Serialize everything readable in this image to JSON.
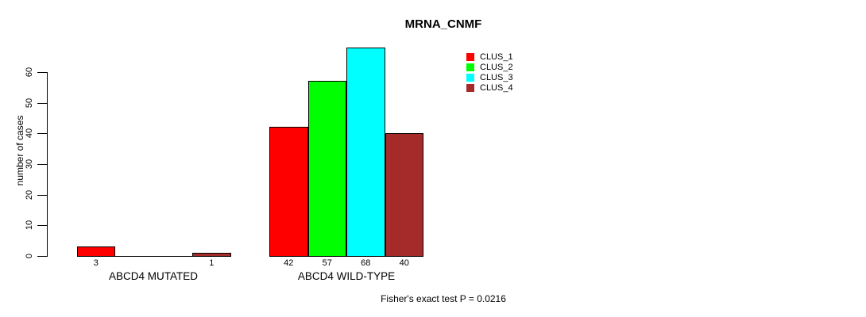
{
  "chart_data": {
    "type": "bar",
    "title": "MRNA_CNMF",
    "ylabel": "number of cases",
    "xlabel": "",
    "ylim": [
      0,
      60
    ],
    "yticks": [
      0,
      10,
      20,
      30,
      40,
      50,
      60
    ],
    "grid": false,
    "legend_position": "top-right",
    "categories": [
      "ABCD4 MUTATED",
      "ABCD4 WILD-TYPE"
    ],
    "groups": [
      {
        "label": "ABCD4 MUTATED",
        "values": [
          3,
          0,
          0,
          1
        ],
        "bar_labels": [
          "3",
          "",
          "",
          "1"
        ]
      },
      {
        "label": "ABCD4 WILD-TYPE",
        "values": [
          42,
          57,
          68,
          40
        ],
        "bar_labels": [
          "42",
          "57",
          "68",
          "40"
        ]
      }
    ],
    "series": [
      {
        "name": "CLUS_1",
        "color": "#FF0000"
      },
      {
        "name": "CLUS_2",
        "color": "#00FF00"
      },
      {
        "name": "CLUS_3",
        "color": "#00FFFF"
      },
      {
        "name": "CLUS_4",
        "color": "#A52A2A"
      }
    ],
    "colors": {
      "axis": "#000000",
      "text": "#000000",
      "background": "#FFFFFF"
    },
    "annotation": "Fisher's exact test P = 0.0216"
  }
}
